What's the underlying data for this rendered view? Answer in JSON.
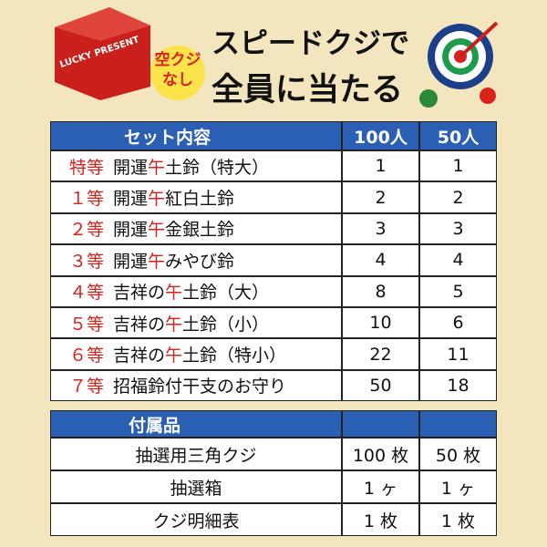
{
  "header": {
    "box_label": "LUCKY PRESENT",
    "badge": "空クジなし",
    "title_line1": "スピードクジで",
    "title_line2": "全員に当たる"
  },
  "table": {
    "columns": [
      "セット内容",
      "100人",
      "50人"
    ],
    "rows": [
      {
        "rank": "特等",
        "item": [
          "開運",
          "午",
          "土鈴（特大）"
        ],
        "v100": 1,
        "v50": 1
      },
      {
        "rank": "１等",
        "item": [
          "開運",
          "午",
          "紅白土鈴"
        ],
        "v100": 2,
        "v50": 2
      },
      {
        "rank": "２等",
        "item": [
          "開運",
          "午",
          "金銀土鈴"
        ],
        "v100": 3,
        "v50": 3
      },
      {
        "rank": "３等",
        "item": [
          "開運",
          "午",
          "みやび鈴"
        ],
        "v100": 4,
        "v50": 4
      },
      {
        "rank": "４等",
        "item": [
          "吉祥の",
          "午",
          "土鈴（大）"
        ],
        "v100": 8,
        "v50": 5
      },
      {
        "rank": "５等",
        "item": [
          "吉祥の",
          "午",
          "土鈴（小）"
        ],
        "v100": 10,
        "v50": 6
      },
      {
        "rank": "６等",
        "item": [
          "吉祥の",
          "午",
          "土鈴（特小）"
        ],
        "v100": 22,
        "v50": 11
      },
      {
        "rank": "７等",
        "item": [
          "招福鈴付干支のお守り"
        ],
        "v100": 50,
        "v50": 18
      }
    ]
  },
  "accessories": {
    "header": "付属品",
    "rows": [
      [
        "抽選用三角クジ",
        "100 枚",
        "50 枚"
      ],
      [
        "抽選箱",
        "1 ヶ",
        "1 ヶ"
      ],
      [
        "クジ明細表",
        "1 枚",
        "1 枚"
      ]
    ]
  }
}
